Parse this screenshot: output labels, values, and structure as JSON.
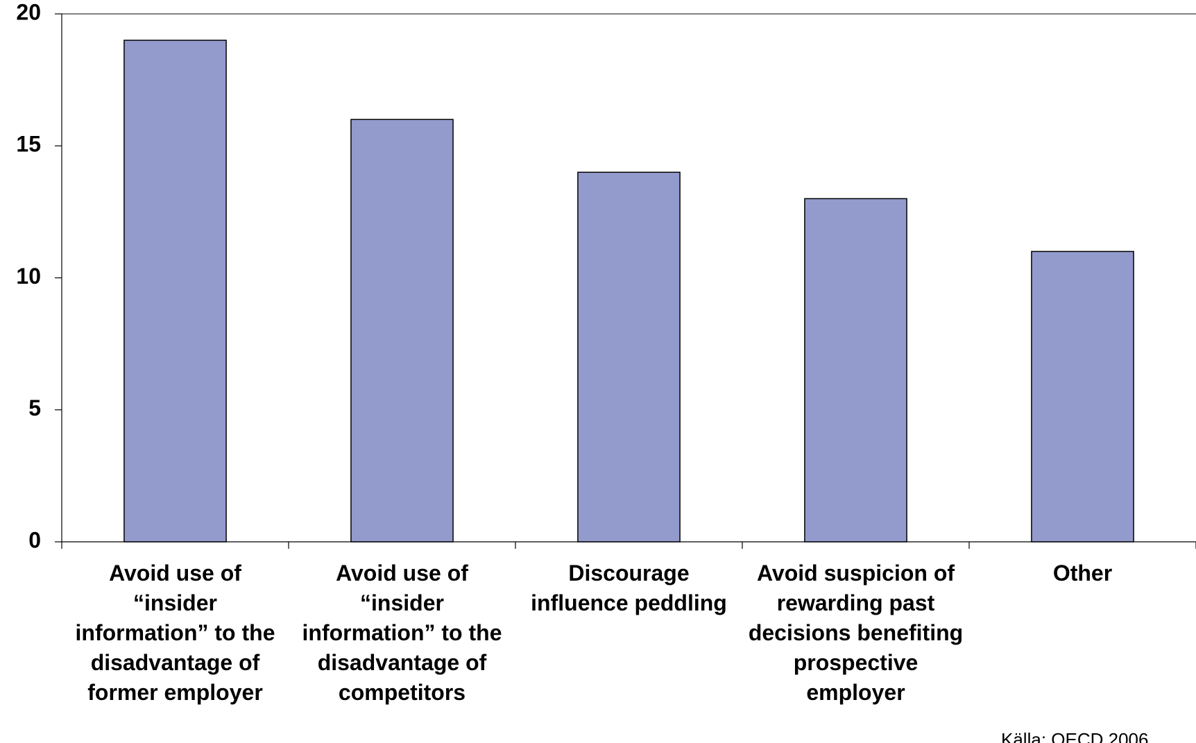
{
  "chart_data": {
    "type": "bar",
    "categories": [
      "Avoid use of “insider information” to the disadvantage of former employer",
      "Avoid use of “insider information” to the disadvantage of competitors",
      "Discourage influence peddling",
      "Avoid suspicion of rewarding past decisions benefiting prospective employer",
      "Other"
    ],
    "values": [
      19,
      16,
      14,
      13,
      11
    ],
    "color": "#939bcd",
    "ylim": [
      0,
      20
    ],
    "yticks": [
      0,
      5,
      10,
      15,
      20
    ],
    "grid": false,
    "annotation": "Källa: OECD 2006"
  }
}
